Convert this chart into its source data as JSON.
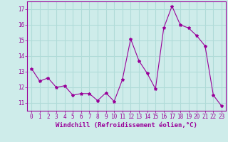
{
  "x": [
    0,
    1,
    2,
    3,
    4,
    5,
    6,
    7,
    8,
    9,
    10,
    11,
    12,
    13,
    14,
    15,
    16,
    17,
    18,
    19,
    20,
    21,
    22,
    23
  ],
  "y": [
    13.2,
    12.4,
    12.6,
    12.0,
    12.1,
    11.5,
    11.6,
    11.6,
    11.15,
    11.65,
    11.1,
    12.5,
    15.1,
    13.7,
    12.9,
    11.9,
    15.8,
    17.2,
    16.0,
    15.8,
    15.3,
    14.65,
    11.5,
    10.8
  ],
  "line_color": "#990099",
  "marker": "*",
  "marker_size": 3,
  "bg_color": "#ceecea",
  "grid_color": "#b0dbd8",
  "xlabel": "Windchill (Refroidissement éolien,°C)",
  "xlabel_color": "#990099",
  "tick_color": "#990099",
  "ylim": [
    10.5,
    17.5
  ],
  "xlim": [
    -0.5,
    23.5
  ],
  "yticks": [
    11,
    12,
    13,
    14,
    15,
    16,
    17
  ],
  "xticks": [
    0,
    1,
    2,
    3,
    4,
    5,
    6,
    7,
    8,
    9,
    10,
    11,
    12,
    13,
    14,
    15,
    16,
    17,
    18,
    19,
    20,
    21,
    22,
    23
  ],
  "label_fontsize": 6.5,
  "tick_fontsize": 5.5
}
